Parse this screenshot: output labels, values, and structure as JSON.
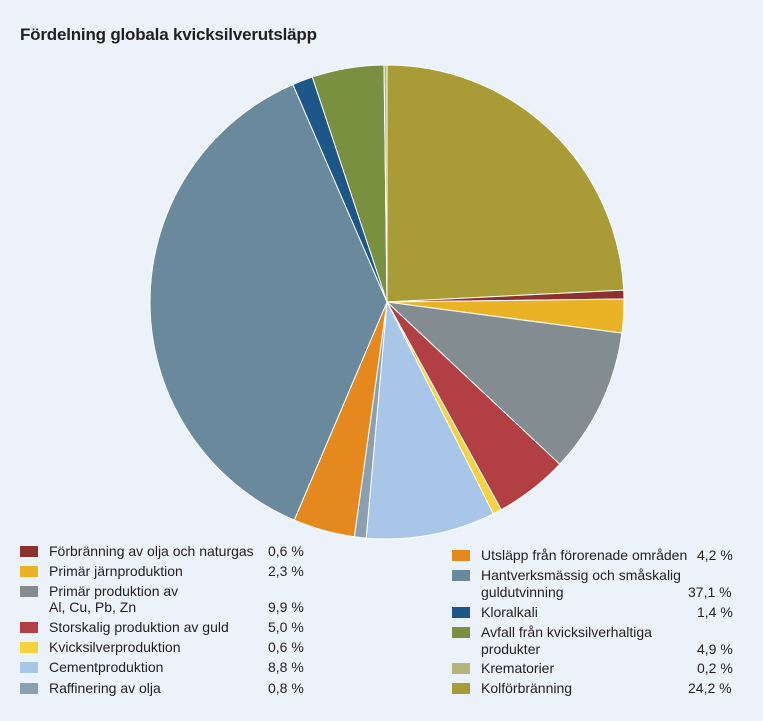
{
  "chart_data": {
    "type": "pie",
    "title": "Fördelning globala kvicksilverutsläpp",
    "slices": [
      {
        "label": "Kolförbränning",
        "value": 24.2,
        "value_text": "24,2 %",
        "color": "#a99b36"
      },
      {
        "label": "Förbränning av olja och naturgas",
        "value": 0.6,
        "value_text": "0,6 %",
        "color": "#8b3230"
      },
      {
        "label": "Primär järnproduktion",
        "value": 2.3,
        "value_text": "2,3 %",
        "color": "#e9b325"
      },
      {
        "label": "Primär produktion av Al, Cu, Pb, Zn",
        "label_line1": "Primär produktion av",
        "label_line2": "Al, Cu, Pb, Zn",
        "value": 9.9,
        "value_text": "9,9 %",
        "color": "#838d91"
      },
      {
        "label": "Storskalig produktion av guld",
        "value": 5.0,
        "value_text": "5,0 %",
        "color": "#b13f43"
      },
      {
        "label": "Kvicksilverproduktion",
        "value": 0.6,
        "value_text": "0,6 %",
        "color": "#f5d23e"
      },
      {
        "label": "Cementproduktion",
        "value": 8.8,
        "value_text": "8,8 %",
        "color": "#a7c6e8"
      },
      {
        "label": "Raffinering av olja",
        "value": 0.8,
        "value_text": "0,8 %",
        "color": "#8a9fb0"
      },
      {
        "label": "Utsläpp från förorenade områden",
        "value": 4.2,
        "value_text": "4,2 %",
        "color": "#e5891f"
      },
      {
        "label": "Hantverksmässig och småskalig guldutvinning",
        "label_line1": "Hantverksmässig och småskalig",
        "label_line2": "guldutvinning",
        "value": 37.1,
        "value_text": "37,1 %",
        "color": "#688a9c"
      },
      {
        "label": "Kloralkali",
        "value": 1.4,
        "value_text": "1,4 %",
        "color": "#1d5788"
      },
      {
        "label": "Avfall från kvicksilverhaltiga produkter",
        "label_line1": "Avfall från kvicksilverhaltiga",
        "label_line2": "produkter",
        "value": 4.9,
        "value_text": "4,9 %",
        "color": "#78903f"
      },
      {
        "label": "Krematorier",
        "value": 0.2,
        "value_text": "0,2 %",
        "color": "#b3b37a"
      }
    ],
    "start_angle": "12 o'clock",
    "direction": "clockwise"
  },
  "legend": {
    "left": [
      {
        "label": "Förbränning av olja och naturgas",
        "value": "0,6 %",
        "color": "#8b3230"
      },
      {
        "label": "Primär järnproduktion",
        "value": "2,3 %",
        "color": "#e9b325"
      },
      {
        "label_line1": "Primär produktion av",
        "label_line2": "Al, Cu, Pb, Zn",
        "value": "9,9 %",
        "color": "#838d91"
      },
      {
        "label": "Storskalig produktion av guld",
        "value": "5,0 %",
        "color": "#b13f43"
      },
      {
        "label": "Kvicksilverproduktion",
        "value": "0,6 %",
        "color": "#f5d23e"
      },
      {
        "label": "Cementproduktion",
        "value": "8,8 %",
        "color": "#a7c6e8"
      },
      {
        "label": "Raffinering av olja",
        "value": "0,8 %",
        "color": "#8a9fb0"
      }
    ],
    "right": [
      {
        "label": "Utsläpp från förorenade områden",
        "value": "4,2 %",
        "color": "#e5891f"
      },
      {
        "label_line1": "Hantverksmässig och småskalig",
        "label_line2": "guldutvinning",
        "value": "37,1 %",
        "color": "#688a9c"
      },
      {
        "label": "Kloralkali",
        "value": "1,4 %",
        "color": "#1d5788"
      },
      {
        "label_line1": "Avfall från kvicksilverhaltiga",
        "label_line2": "produkter",
        "value": "4,9 %",
        "color": "#78903f"
      },
      {
        "label": "Krematorier",
        "value": "0,2 %",
        "color": "#b3b37a"
      },
      {
        "label": "Kolförbränning",
        "value": "24,2 %",
        "color": "#a99b36"
      }
    ]
  }
}
